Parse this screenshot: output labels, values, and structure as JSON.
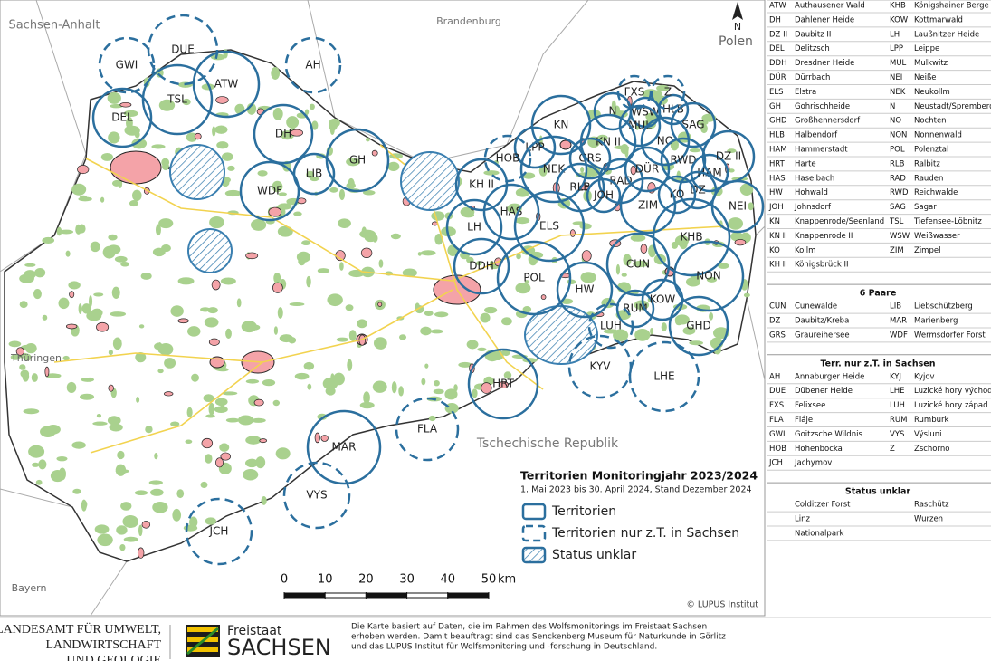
{
  "map": {
    "neighbors": [
      "Sachsen-Anhalt",
      "Brandenburg",
      "Polen",
      "Thüringen",
      "Bayern",
      "Tschechische Republik"
    ],
    "territories": [
      "DEL",
      "TSL",
      "ATW",
      "DH",
      "WDF",
      "LIB",
      "GH",
      "KN",
      "N",
      "WSW",
      "HLB",
      "MUL",
      "SAG",
      "KN II",
      "LPP",
      "GRS",
      "NEK",
      "NO",
      "RLB",
      "RAD",
      "DÜR",
      "RWD",
      "HAM",
      "DZ II",
      "JOH",
      "DZ",
      "KO",
      "ZIM",
      "NEI",
      "KH II",
      "HAS",
      "LH",
      "ELS",
      "KHB",
      "DDH",
      "POL",
      "CUN",
      "NON",
      "HW",
      "RUM",
      "KOW",
      "GHD",
      "HRT",
      "MAR"
    ],
    "partial_territories": [
      "GWI",
      "DUE",
      "AH",
      "FXS",
      "Z",
      "HOB",
      "LUH",
      "KYV",
      "LHE",
      "FLA",
      "VYS",
      "JCH"
    ],
    "legend": {
      "title": "Territorien Monitoringjahr 2023/2024",
      "subtitle": "1. Mai 2023 bis 30. April 2024, Stand Dezember 2024",
      "items": [
        "Territorien",
        "Territorien nur z.T. in Sachsen",
        "Status unklar"
      ]
    },
    "scale": {
      "ticks": [
        0,
        10,
        20,
        30,
        40,
        50
      ],
      "unit": "km"
    },
    "north": "N",
    "copyright": "© LUPUS Institut"
  },
  "table": {
    "sections": [
      {
        "rows": [
          [
            "ATW",
            "Authausener Wald",
            "KHB",
            "Königshainer Berge"
          ],
          [
            "DH",
            "Dahlener Heide",
            "KOW",
            "Kottmarwald"
          ],
          [
            "DZ II",
            "Daubitz II",
            "LH",
            "Laußnitzer Heide"
          ],
          [
            "DEL",
            "Delitzsch",
            "LPP",
            "Leippe"
          ],
          [
            "DDH",
            "Dresdner Heide",
            "MUL",
            "Mulkwitz"
          ],
          [
            "DÜR",
            "Dürrbach",
            "NEI",
            "Neiße"
          ],
          [
            "ELS",
            "Elstra",
            "NEK",
            "Neukollm"
          ],
          [
            "GH",
            "Gohrischheide",
            "N",
            "Neustadt/Spremberg"
          ],
          [
            "GHD",
            "Großhennersdorf",
            "NO",
            "Nochten"
          ],
          [
            "HLB",
            "Halbendorf",
            "NON",
            "Nonnenwald"
          ],
          [
            "HAM",
            "Hammerstadt",
            "POL",
            "Polenztal"
          ],
          [
            "HRT",
            "Harte",
            "RLB",
            "Ralbitz"
          ],
          [
            "HAS",
            "Haselbach",
            "RAD",
            "Rauden"
          ],
          [
            "HW",
            "Hohwald",
            "RWD",
            "Reichwalde"
          ],
          [
            "JOH",
            "Johnsdorf",
            "SAG",
            "Sagar"
          ],
          [
            "KN",
            "Knappenrode/Seenland",
            "TSL",
            "Tiefensee-Löbnitz"
          ],
          [
            "KN II",
            "Knappenrode II",
            "WSW",
            "Weißwasser"
          ],
          [
            "KO",
            "Kollm",
            "ZIM",
            "Zimpel"
          ],
          [
            "KH II",
            "Königsbrück II"
          ]
        ]
      },
      {
        "title": "6 Paare",
        "rows": [
          [
            "CUN",
            "Cunewalde",
            "LIB",
            "Liebschützberg"
          ],
          [
            "DZ",
            "Daubitz/Kreba",
            "MAR",
            "Marienberg"
          ],
          [
            "GRS",
            "Graureihersee",
            "WDF",
            "Wermsdorfer Forst"
          ]
        ]
      },
      {
        "title": "Terr. nur z.T. in Sachsen",
        "rows": [
          [
            "AH",
            "Annaburger Heide",
            "KYJ",
            "Kyjov"
          ],
          [
            "DUE",
            "Dübener Heide",
            "LHE",
            "Luzické hory východ"
          ],
          [
            "FXS",
            "Felixsee",
            "LUH",
            "Luzické hory západ"
          ],
          [
            "FLA",
            "Fláje",
            "RUM",
            "Rumburk"
          ],
          [
            "GWI",
            "Goitzsche Wildnis",
            "VYS",
            "Výsluni"
          ],
          [
            "HOB",
            "Hohenbocka",
            "Z",
            "Zschorno"
          ],
          [
            "JCH",
            "Jachymov"
          ]
        ]
      },
      {
        "title": "Status unklar",
        "rows": [
          [
            "Colditzer Forst",
            "Raschütz"
          ],
          [
            "Linz",
            "Wurzen"
          ],
          [
            "Nationalpark"
          ]
        ]
      }
    ]
  },
  "footer": {
    "agency": [
      "LANDESAMT FÜR UMWELT,",
      "LANDWIRTSCHAFT",
      "UND GEOLOGIE"
    ],
    "brand": [
      "Freistaat",
      "SACHSEN"
    ],
    "note": [
      "Die Karte basiert auf Daten, die im Rahmen des Wolfsmonitorings im Freistaat Sachsen",
      "erhoben werden. Damit beauftragt sind das Senckenberg Museum für Naturkunde in Görlitz",
      "und das LUPUS Institut für Wolfsmonitoring und -forschung in Deutschland."
    ]
  }
}
